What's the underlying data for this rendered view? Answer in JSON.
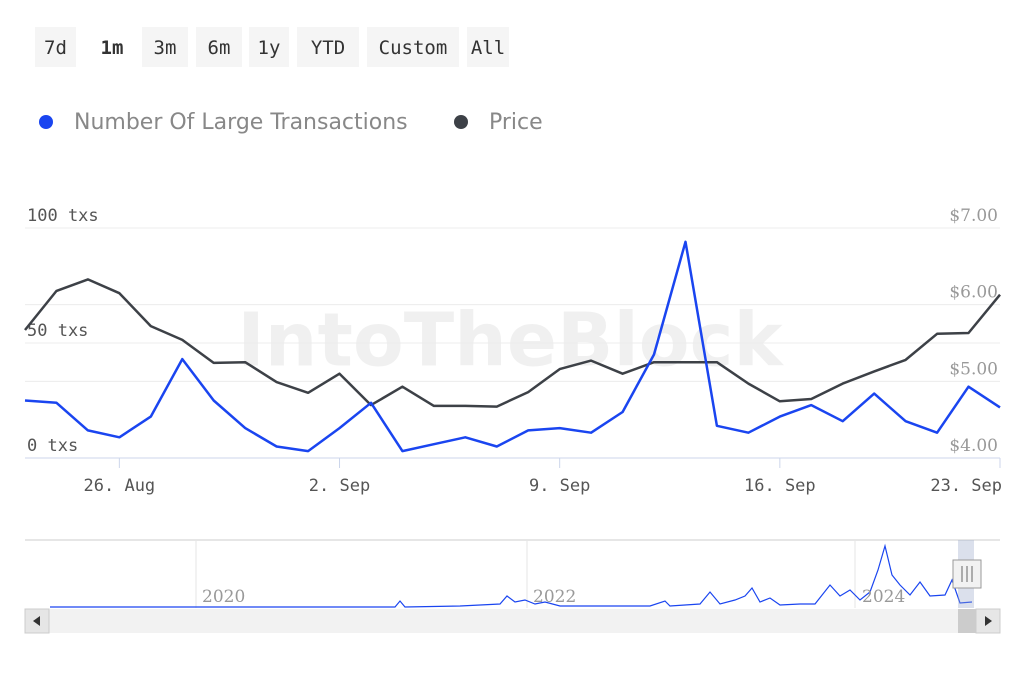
{
  "range_buttons": [
    "7d",
    "1m",
    "3m",
    "6m",
    "1y",
    "YTD",
    "Custom",
    "All"
  ],
  "selected_button": "1m",
  "chart_data": {
    "type": "line",
    "watermark": "IntoTheBlock",
    "legend": "top-left",
    "grid": true,
    "x": [
      "23. Aug",
      "24. Aug",
      "25. Aug",
      "26. Aug",
      "27. Aug",
      "28. Aug",
      "29. Aug",
      "30. Aug",
      "31. Aug",
      "1. Sep",
      "2. Sep",
      "3. Sep",
      "4. Sep",
      "5. Sep",
      "6. Sep",
      "7. Sep",
      "8. Sep",
      "9. Sep",
      "10. Sep",
      "11. Sep",
      "12. Sep",
      "13. Sep",
      "14. Sep",
      "15. Sep",
      "16. Sep",
      "17. Sep",
      "18. Sep",
      "19. Sep",
      "20. Sep",
      "21. Sep",
      "22. Sep",
      "23. Sep"
    ],
    "xticks": [
      "26. Aug",
      "2. Sep",
      "9. Sep",
      "16. Sep",
      "23. Sep"
    ],
    "series": [
      {
        "name": "Number Of Large Transactions",
        "color": "#1a45f0",
        "axis": "y",
        "values": [
          25,
          24,
          12,
          9,
          18,
          43,
          25,
          13,
          5,
          3,
          13,
          24,
          3,
          6,
          9,
          5,
          12,
          13,
          11,
          20,
          45,
          94,
          14,
          11,
          18,
          23,
          16,
          28,
          16,
          11,
          31,
          22
        ]
      },
      {
        "name": "Price",
        "color": "#3d4147",
        "axis": "y2",
        "values": [
          5.67,
          6.18,
          6.33,
          6.15,
          5.72,
          5.54,
          5.24,
          5.25,
          4.99,
          4.85,
          5.1,
          4.69,
          4.93,
          4.68,
          4.68,
          4.67,
          4.86,
          5.16,
          5.27,
          5.1,
          5.25,
          5.25,
          5.25,
          4.97,
          4.74,
          4.77,
          4.97,
          5.13,
          5.28,
          5.62,
          5.63,
          6.13
        ]
      }
    ],
    "ylim": [
      0,
      100
    ],
    "yticks": [
      {
        "value": 0,
        "label": "0 txs"
      },
      {
        "value": 50,
        "label": "50 txs"
      },
      {
        "value": 100,
        "label": "100 txs"
      }
    ],
    "y2lim": [
      4,
      7
    ],
    "y2ticks": [
      {
        "value": 4,
        "label": "$4.00"
      },
      {
        "value": 5,
        "label": "$5.00"
      },
      {
        "value": 6,
        "label": "$6.00"
      },
      {
        "value": 7,
        "label": "$7.00"
      }
    ]
  },
  "navigator": {
    "labels": [
      "2020",
      "2022",
      "2024"
    ]
  }
}
